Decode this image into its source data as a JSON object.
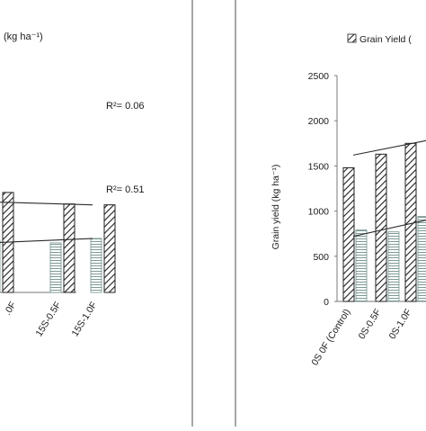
{
  "colors": {
    "frame": "#6a6a6a",
    "axis": "#7a7a7a",
    "bar_stroke": "#222222",
    "trend": "#2b2b2b",
    "text": "#1a1a1a"
  },
  "chart_data": [
    {
      "type": "bar",
      "panel": "left",
      "title": "(kg ha⁻¹)",
      "categories": [
        "",
        "15S-0.5F",
        "15S-1.0F"
      ],
      "category_labels": [
        ".0F",
        "15S-0.5F",
        "15S-1.0F"
      ],
      "series": [
        {
          "pattern": "horizontal-lines",
          "values": [
            590,
            560,
            610
          ]
        },
        {
          "pattern": "diagonal-hatch",
          "values": [
            1130,
            1000,
            990
          ]
        }
      ],
      "annotations": [
        "R²= 0.06",
        "R²= 0.51"
      ],
      "grid": false
    },
    {
      "type": "bar",
      "panel": "right",
      "ylabel": "Grain yield (kg ha⁻¹)",
      "ylim": [
        0,
        2500
      ],
      "yticks": [
        "0",
        "500",
        "1000",
        "1500",
        "2000",
        "2500"
      ],
      "categories": [
        "0S 0F (Control)",
        "0S-0.5F",
        "0S-1.0F"
      ],
      "legend": [
        "Grain Yield ("
      ],
      "legend_position": "top",
      "series": [
        {
          "name": "Grain Yield (",
          "pattern": "diagonal-hatch",
          "values": [
            1480,
            1630,
            1750
          ]
        },
        {
          "pattern": "horizontal-lines",
          "values": [
            790,
            770,
            940
          ]
        }
      ],
      "grid": false
    }
  ]
}
